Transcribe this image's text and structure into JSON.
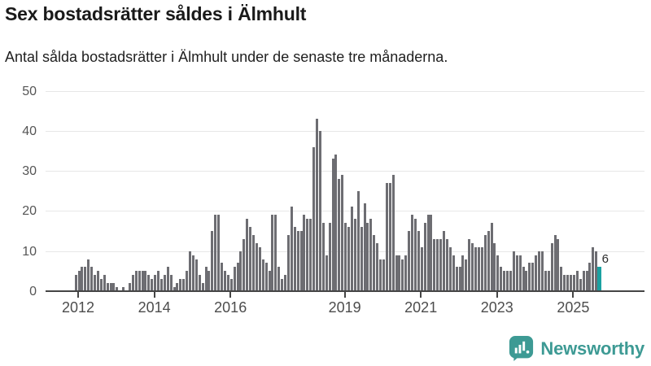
{
  "title": "Sex bostadsrätter såldes i Älmhult",
  "subtitle": "Antal sålda bostadsrätter i Älmhult under de senaste tre månaderna.",
  "logo": {
    "text": "Newsworthy"
  },
  "colors": {
    "bar": "#6d6d72",
    "highlight": "#1ba1a1",
    "grid": "#e7e7e7",
    "axis": "#454545",
    "logo_teal": "#3d9a94"
  },
  "chart_data": {
    "type": "bar",
    "title": "Sex bostadsrätter såldes i Älmhult",
    "subtitle": "Antal sålda bostadsrätter i Älmhult under de senaste tre månaderna.",
    "xlabel": "",
    "ylabel": "",
    "ylim": [
      0,
      50
    ],
    "yticks": [
      0,
      10,
      20,
      30,
      40,
      50
    ],
    "grid": "horizontal",
    "x_unit": "month",
    "xticks": [
      {
        "label": "2012",
        "index": 10
      },
      {
        "label": "2014",
        "index": 34
      },
      {
        "label": "2016",
        "index": 58
      },
      {
        "label": "2019",
        "index": 94
      },
      {
        "label": "2021",
        "index": 118
      },
      {
        "label": "2023",
        "index": 142
      },
      {
        "label": "2025",
        "index": 166
      }
    ],
    "values": [
      0,
      0,
      0,
      0,
      0,
      0,
      0,
      0,
      0,
      4,
      5,
      6,
      6,
      8,
      6,
      4,
      5,
      3,
      4,
      2,
      2,
      2,
      1,
      0,
      1,
      0,
      2,
      4,
      5,
      5,
      5,
      5,
      4,
      3,
      4,
      5,
      3,
      4,
      6,
      4,
      1,
      2,
      3,
      3,
      5,
      10,
      9,
      8,
      4,
      2,
      6,
      5,
      15,
      19,
      19,
      7,
      5,
      4,
      3,
      6,
      7,
      10,
      13,
      18,
      16,
      14,
      12,
      11,
      8,
      7,
      5,
      19,
      19,
      6,
      3,
      4,
      14,
      21,
      16,
      15,
      15,
      19,
      18,
      18,
      36,
      43,
      40,
      17,
      9,
      17,
      33,
      34,
      28,
      29,
      17,
      16,
      21,
      18,
      25,
      16,
      22,
      17,
      18,
      14,
      12,
      8,
      8,
      27,
      27,
      29,
      9,
      9,
      8,
      9,
      15,
      19,
      18,
      15,
      11,
      17,
      19,
      19,
      13,
      13,
      13,
      15,
      13,
      11,
      9,
      6,
      6,
      9,
      8,
      13,
      12,
      11,
      11,
      11,
      14,
      15,
      17,
      12,
      9,
      6,
      5,
      5,
      5,
      10,
      9,
      9,
      6,
      5,
      7,
      7,
      9,
      10,
      10,
      5,
      5,
      12,
      14,
      13,
      6,
      4,
      4,
      4,
      4,
      5,
      3,
      5,
      5,
      7,
      11,
      10,
      6
    ],
    "highlight_index": 174,
    "highlight_value_label": "6"
  }
}
